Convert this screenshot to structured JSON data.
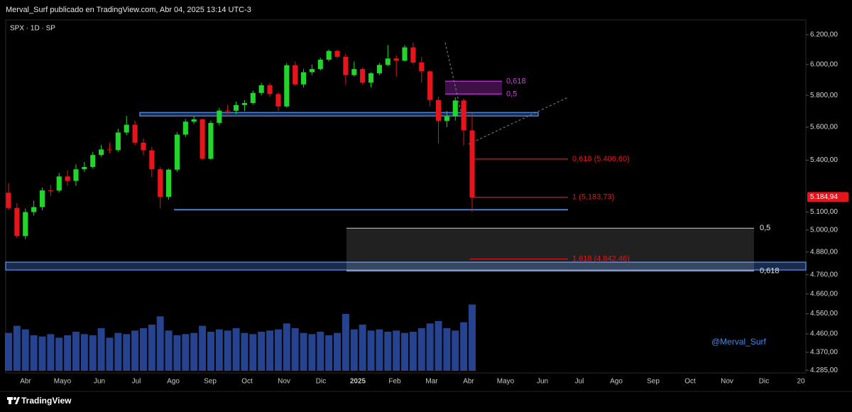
{
  "header": "Merval_Surf publicado en TradingView.com, Abr 04, 2025 13:14 UTC-3",
  "footer": "TradingView",
  "chart_data": {
    "type": "candlestick",
    "title": "SPX · 1D · SP",
    "watermark": "@Merval_Surf",
    "x_labels": [
      "Abr",
      "Mayo",
      "Jun",
      "Jul",
      "Ago",
      "Sep",
      "Oct",
      "Nov",
      "Dic",
      "2025",
      "Feb",
      "Mar",
      "Abr",
      "Mayo",
      "Jun",
      "Jul",
      "Ago",
      "Sep",
      "Oct",
      "Nov",
      "Dic",
      "20"
    ],
    "open": [
      5210,
      5123,
      4967,
      5100,
      5128,
      5223,
      5222,
      5304,
      5278,
      5346,
      5360,
      5431,
      5464,
      5460,
      5567,
      5615,
      5505,
      5459,
      5346,
      5186,
      5344,
      5554,
      5634,
      5648,
      5408,
      5626,
      5703,
      5702,
      5738,
      5751,
      5815,
      5864,
      5808,
      5729,
      5995,
      5870,
      5949,
      5970,
      6032,
      6090,
      6051,
      5930,
      5970,
      5881,
      5942,
      5997,
      6040,
      6025,
      6114,
      6013,
      5955,
      5770,
      5638,
      5667,
      5767,
      5580
    ],
    "high": [
      5265,
      5150,
      5120,
      5165,
      5240,
      5255,
      5325,
      5340,
      5375,
      5390,
      5450,
      5490,
      5505,
      5590,
      5670,
      5640,
      5530,
      5480,
      5360,
      5350,
      5570,
      5650,
      5670,
      5655,
      5640,
      5720,
      5740,
      5760,
      5770,
      5830,
      5880,
      5878,
      5820,
      6010,
      6020,
      5970,
      6000,
      6045,
      6100,
      6100,
      6070,
      6020,
      5980,
      5950,
      6010,
      6130,
      6060,
      6130,
      6147,
      6050,
      5960,
      5790,
      5700,
      5787,
      5780,
      5690
    ],
    "low": [
      5110,
      4955,
      4950,
      5080,
      5110,
      5190,
      5210,
      5250,
      5250,
      5330,
      5350,
      5420,
      5440,
      5450,
      5550,
      5490,
      5430,
      5300,
      5120,
      5170,
      5330,
      5540,
      5620,
      5400,
      5400,
      5610,
      5680,
      5680,
      5700,
      5740,
      5800,
      5790,
      5700,
      5720,
      5860,
      5850,
      5930,
      5960,
      6020,
      6040,
      5867,
      5920,
      5870,
      5850,
      5930,
      5990,
      5920,
      6020,
      6000,
      5880,
      5730,
      5500,
      5600,
      5640,
      5488,
      5101
    ],
    "close": [
      5123,
      4967,
      5100,
      5128,
      5223,
      5222,
      5304,
      5278,
      5346,
      5360,
      5431,
      5464,
      5460,
      5567,
      5615,
      5505,
      5459,
      5346,
      5186,
      5344,
      5554,
      5634,
      5648,
      5408,
      5626,
      5703,
      5702,
      5738,
      5751,
      5815,
      5864,
      5808,
      5729,
      5995,
      5870,
      5949,
      5970,
      6032,
      6090,
      6051,
      5930,
      5970,
      5881,
      5942,
      5997,
      6040,
      6025,
      6114,
      6013,
      5955,
      5770,
      5638,
      5667,
      5767,
      5580,
      5185
    ],
    "up_color": "#22d52a",
    "down_color": "#e5151b",
    "volume": {
      "values": [
        3.2,
        3.8,
        3.5,
        3.0,
        2.9,
        3.1,
        2.8,
        3.0,
        3.3,
        3.1,
        3.0,
        3.6,
        2.8,
        3.2,
        3.1,
        3.4,
        3.6,
        3.9,
        4.6,
        3.4,
        3.0,
        3.1,
        3.2,
        3.8,
        3.3,
        3.5,
        3.4,
        3.6,
        3.2,
        3.1,
        3.3,
        3.4,
        3.5,
        4.0,
        3.6,
        3.2,
        3.1,
        3.3,
        3.0,
        3.2,
        4.8,
        3.5,
        3.9,
        3.4,
        3.5,
        3.3,
        3.4,
        3.2,
        3.3,
        3.6,
        4.0,
        4.2,
        3.6,
        3.4,
        4.1,
        5.6
      ],
      "color": "#2d4fa8",
      "lim": [
        0,
        6
      ]
    },
    "log_scale": true,
    "grid": false,
    "ylim": [
      4272,
      6302
    ],
    "yticks": [
      {
        "value": 6200,
        "label": "6.200,00"
      },
      {
        "value": 6000,
        "label": "6.000,00"
      },
      {
        "value": 5800,
        "label": "5.800,00"
      },
      {
        "value": 5600,
        "label": "5.600,00"
      },
      {
        "value": 5400,
        "label": "5.400,00"
      },
      {
        "value": 5100,
        "label": "5.100,00"
      },
      {
        "value": 5000,
        "label": "5.000,00"
      },
      {
        "value": 4880,
        "label": "4.880,00"
      },
      {
        "value": 4760,
        "label": "4.760,00"
      },
      {
        "value": 4660,
        "label": "4.660,00"
      },
      {
        "value": 4560,
        "label": "4.560,00"
      },
      {
        "value": 4460,
        "label": "4.460,00"
      },
      {
        "value": 4370,
        "label": "4.370,00"
      },
      {
        "value": 4285,
        "label": "4.285,00"
      }
    ],
    "last_price": {
      "value": 5184.94,
      "label": "5.184,94",
      "color": "#e5151b"
    },
    "zones": [
      {
        "from": 5669,
        "to": 5691,
        "color": "#4a7fd6"
      },
      {
        "from": 4785,
        "to": 4826,
        "color": "#4a7fd6"
      }
    ],
    "support": {
      "value": 5113,
      "color": "#4a7fd6"
    },
    "fib_box": {
      "levels": [
        {
          "value": 5010,
          "label": "0,5"
        },
        {
          "value": 4780,
          "label": "0,618"
        }
      ],
      "color": "#cfcfcf"
    },
    "fib_purple": {
      "levels": [
        {
          "value": 5890,
          "label": "0,618"
        },
        {
          "value": 5808,
          "label": "0,5"
        }
      ],
      "color": "#b030c8"
    },
    "fib_ext": {
      "levels": [
        {
          "value": 5406.6,
          "label": "0,618 (5.406,60)"
        },
        {
          "value": 5183.73,
          "label": "1 (5.183,73)"
        },
        {
          "value": 4842.46,
          "label": "1,618 (4.842,46)"
        }
      ],
      "color": "#e5151b"
    }
  }
}
